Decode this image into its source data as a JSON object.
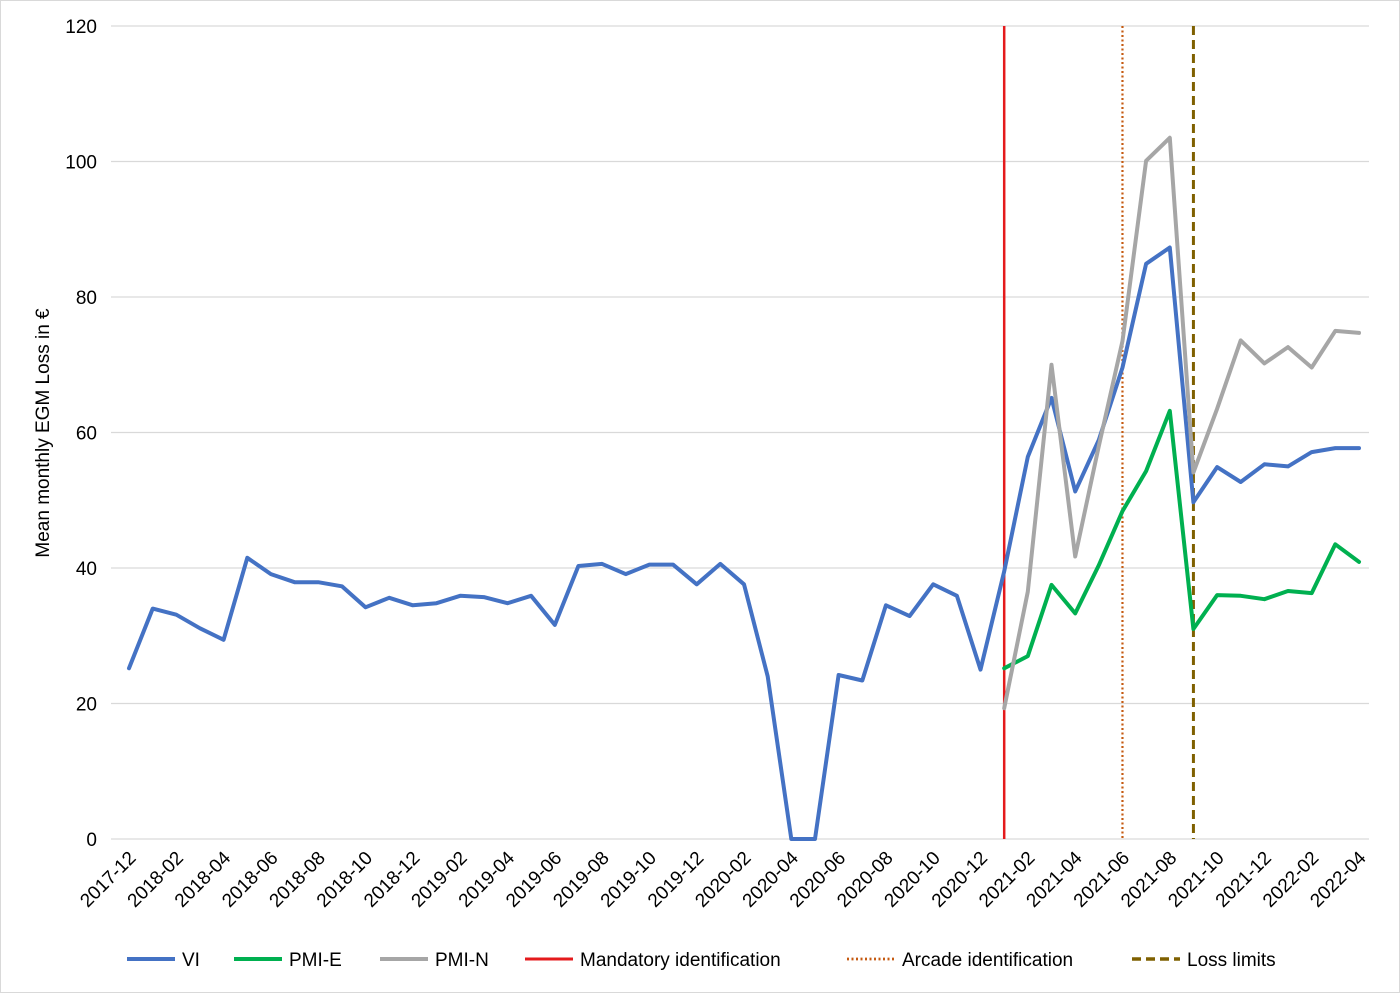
{
  "chart_data": {
    "type": "line",
    "title": "",
    "xlabel": "",
    "ylabel": "Mean monthly EGM Loss in €",
    "ylim": [
      0,
      120
    ],
    "yticks": [
      "0",
      "20",
      "40",
      "60",
      "80",
      "100",
      "120"
    ],
    "grid": true,
    "legend_position": "bottom",
    "months": [
      "2017-12",
      "2018-01",
      "2018-02",
      "2018-03",
      "2018-04",
      "2018-05",
      "2018-06",
      "2018-07",
      "2018-08",
      "2018-09",
      "2018-10",
      "2018-11",
      "2018-12",
      "2019-01",
      "2019-02",
      "2019-03",
      "2019-04",
      "2019-05",
      "2019-06",
      "2019-07",
      "2019-08",
      "2019-09",
      "2019-10",
      "2019-11",
      "2019-12",
      "2020-01",
      "2020-02",
      "2020-03",
      "2020-04",
      "2020-05",
      "2020-06",
      "2020-07",
      "2020-08",
      "2020-09",
      "2020-10",
      "2020-11",
      "2020-12",
      "2021-01",
      "2021-02",
      "2021-03",
      "2021-04",
      "2021-05",
      "2021-06",
      "2021-07",
      "2021-08",
      "2021-09",
      "2021-10",
      "2021-11",
      "2021-12",
      "2022-01",
      "2022-02",
      "2022-03",
      "2022-04"
    ],
    "tick_labels": [
      "2017-12",
      "2018-02",
      "2018-04",
      "2018-06",
      "2018-08",
      "2018-10",
      "2018-12",
      "2019-02",
      "2019-04",
      "2019-06",
      "2019-08",
      "2019-10",
      "2019-12",
      "2020-02",
      "2020-04",
      "2020-06",
      "2020-08",
      "2020-10",
      "2020-12",
      "2021-02",
      "2021-04",
      "2021-06",
      "2021-08",
      "2021-10",
      "2021-12",
      "2022-02",
      "2022-04"
    ],
    "series": [
      {
        "name": "VI",
        "color": "#4472c4",
        "start": "2017-12",
        "values": [
          25.2,
          34,
          33.1,
          31.1,
          29.4,
          41.5,
          39.1,
          37.9,
          37.9,
          37.3,
          34.2,
          35.6,
          34.5,
          34.8,
          35.9,
          35.7,
          34.8,
          35.9,
          31.6,
          40.3,
          40.6,
          39.1,
          40.5,
          40.5,
          37.6,
          40.6,
          37.6,
          24,
          0,
          0,
          24.2,
          23.4,
          34.5,
          32.9,
          37.6,
          35.9,
          25,
          39.5,
          56.4,
          65.1,
          51.3,
          58.9,
          69.6,
          84.9,
          87.3,
          49.7,
          54.9,
          52.7,
          55.3,
          55,
          57.1,
          57.7,
          57.7
        ]
      },
      {
        "name": "PMI-E",
        "color": "#00b050",
        "start": "2021-01",
        "values": [
          25.2,
          27,
          37.5,
          33.3,
          40.4,
          48.4,
          54.3,
          63.2,
          31,
          36,
          35.9,
          35.4,
          36.6,
          36.3,
          43.5,
          40.9
        ]
      },
      {
        "name": "PMI-N",
        "color": "#a6a6a6",
        "start": "2021-01",
        "values": [
          19.3,
          36.5,
          70,
          41.7,
          58,
          73.5,
          100.1,
          103.5,
          54.1,
          63.5,
          73.6,
          70.2,
          72.6,
          69.6,
          75,
          74.7
        ]
      }
    ],
    "events": [
      {
        "name": "Mandatory identification",
        "month": "2021-01",
        "color": "#e41a1c",
        "style": "solid"
      },
      {
        "name": "Arcade identification",
        "month": "2021-06",
        "color": "#c55a11",
        "style": "dotted"
      },
      {
        "name": "Loss limits",
        "month": "2021-09",
        "color": "#7f6000",
        "style": "dashed"
      }
    ]
  }
}
